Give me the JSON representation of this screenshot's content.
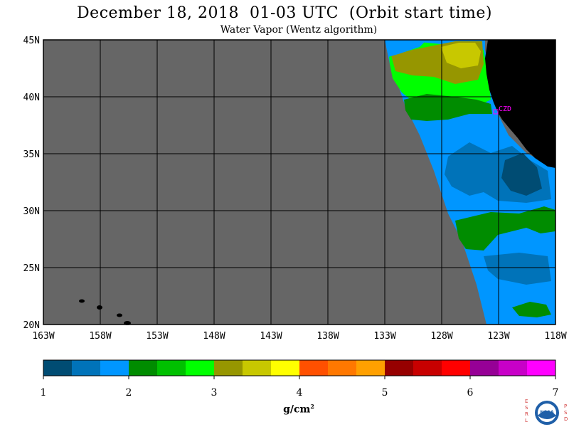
{
  "header": {
    "title": "December 18, 2018  01-03 UTC  (Orbit start time)",
    "subtitle": "Water Vapor (Wentz algorithm)"
  },
  "map": {
    "lon_range": [
      -163,
      -118
    ],
    "lat_range": [
      20,
      45
    ],
    "lon_ticks": [
      "163W",
      "158W",
      "153W",
      "148W",
      "143W",
      "138W",
      "133W",
      "128W",
      "123W",
      "118W"
    ],
    "lat_ticks": [
      "45N",
      "40N",
      "35N",
      "30N",
      "25N",
      "20N"
    ],
    "station_label": "CZD",
    "colors": {
      "no_data": "#666666",
      "land": "#000000",
      "grid": "#000000",
      "station": "#ff00ff"
    }
  },
  "colorbar": {
    "unit_label": "g/cm",
    "unit_exponent": "2",
    "tick_labels": [
      "1",
      "2",
      "3",
      "4",
      "5",
      "6",
      "7"
    ],
    "range": [
      1,
      7
    ],
    "colors": [
      "#004c73",
      "#0073b9",
      "#0096ff",
      "#008c00",
      "#00c000",
      "#00ff00",
      "#969600",
      "#c8c800",
      "#ffff00",
      "#ff5000",
      "#ff7800",
      "#ffa000",
      "#960000",
      "#c80000",
      "#ff0000",
      "#960096",
      "#c800c8",
      "#ff00ff"
    ]
  },
  "branding": {
    "logo_name": "NOAA",
    "left_letters": "ESRL",
    "right_letters": "PSD"
  }
}
